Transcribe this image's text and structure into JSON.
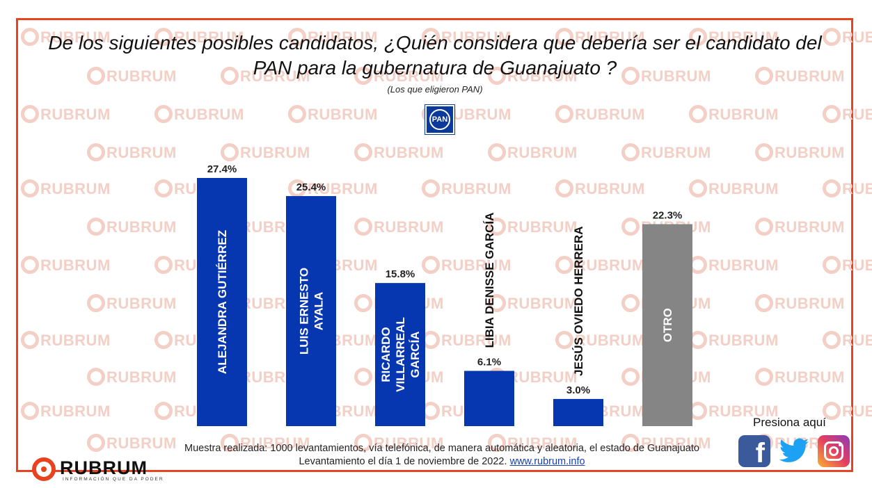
{
  "title": "De los siguientes posibles candidatos, ¿Quién considera que debería ser  el candidato del PAN para la gubernatura de Guanajuato ?",
  "subtitle": "(Los que eligieron PAN)",
  "party_logo": {
    "text": "PAN",
    "color": "#0b3a9a"
  },
  "watermark_text": "RUBRUM",
  "chart_data": {
    "type": "bar",
    "title": "De los siguientes posibles candidatos, ¿Quién considera que debería ser  el candidato del PAN para la gubernatura de Guanajuato ?",
    "categories": [
      "ALEJANDRA GUTIÉRREZ",
      "LUIS ERNESTO AYALA",
      "RICARDO VILLARREAL GARCÍA",
      "LIBIA DENISSE GARCÍA",
      "JESÚS OVIEDO HERRERA",
      "OTRO"
    ],
    "label_lines": [
      [
        "ALEJANDRA GUTIÉRREZ"
      ],
      [
        "LUIS ERNESTO",
        "AYALA"
      ],
      [
        "RICARDO",
        "VILLARREAL",
        "GARCÍA"
      ],
      [
        "LIBIA DENISSE GARCÍA"
      ],
      [
        "JESÚS OVIEDO HERRERA"
      ],
      [
        "OTRO"
      ]
    ],
    "values": [
      27.4,
      25.4,
      15.8,
      6.1,
      3.0,
      22.3
    ],
    "value_labels": [
      "27.4%",
      "25.4%",
      "15.8%",
      "6.1%",
      "3.0%",
      "22.3%"
    ],
    "colors": [
      "#0636b0",
      "#0636b0",
      "#0636b0",
      "#0636b0",
      "#0636b0",
      "#858585"
    ],
    "xlabel": "",
    "ylabel": "",
    "ylim": [
      0,
      27.4
    ],
    "grid": false,
    "legend": "none"
  },
  "footnote": {
    "line1": "Muestra realizada: 1000 levantamientos, vía telefónica, de manera automática y aleatoria, el estado de Guanajuato",
    "line2_prefix": "Levantamiento el día 1 de noviembre de 2022.  ",
    "link": "www.rubrum.info"
  },
  "social": {
    "cta": "Presiona aquí",
    "facebook_glyph": "f",
    "facebook_color": "#3b5a9b",
    "twitter_color": "#1da1f2"
  },
  "brand": {
    "name": "RUBRUM",
    "tagline": "INFORMACIÓN QUE DA PODER",
    "accent": "#e8431f"
  }
}
